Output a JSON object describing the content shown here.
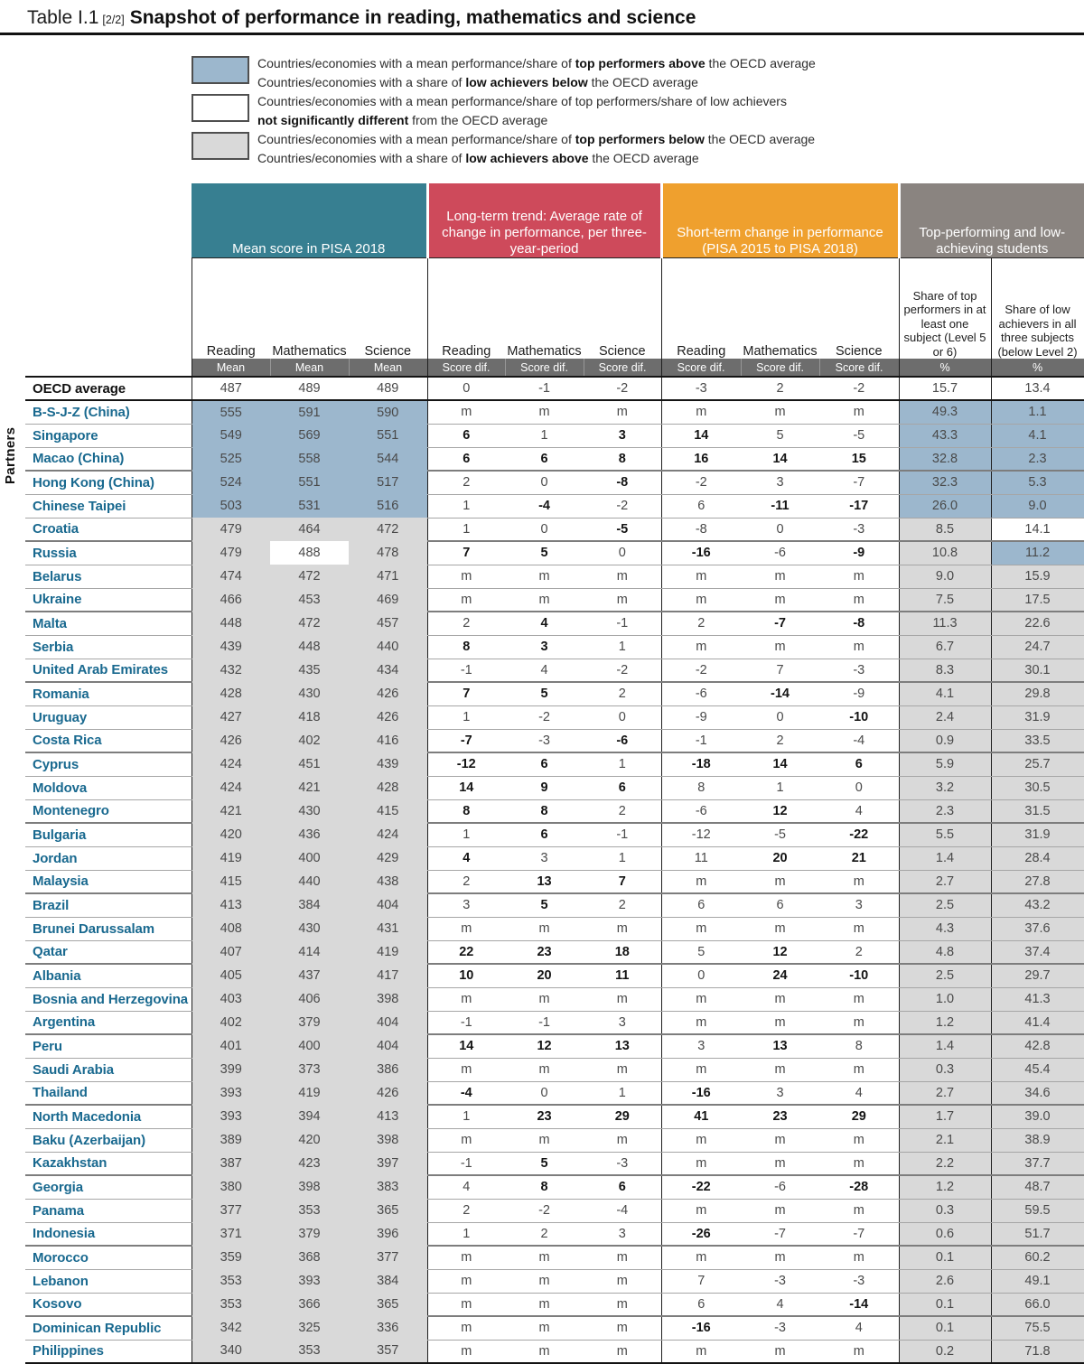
{
  "title": {
    "prefix": "Table I.1",
    "part": "[2/2]",
    "main": "Snapshot of performance in reading, mathematics and science"
  },
  "colors": {
    "header_teal": "#377f91",
    "header_red": "#ce4a5b",
    "header_orange": "#efa02e",
    "header_gray": "#8a8480",
    "stat_band": "#6d6d6d",
    "cell_blue": "#9cb7cd",
    "cell_gray": "#d9d9d9",
    "country_name": "#19698f",
    "white": "#ffffff"
  },
  "legend": [
    {
      "box": "cell_blue",
      "lines": [
        [
          {
            "t": "Countries/economies with a mean performance/share of ",
            "b": false
          },
          {
            "t": "top performers above",
            "b": true
          },
          {
            "t": " the OECD average",
            "b": false
          }
        ],
        [
          {
            "t": "Countries/economies with a share of ",
            "b": false
          },
          {
            "t": "low achievers below",
            "b": true
          },
          {
            "t": " the OECD average",
            "b": false
          }
        ]
      ]
    },
    {
      "box": "white",
      "lines": [
        [
          {
            "t": "Countries/economies with a mean performance/share of top performers/share of low achievers",
            "b": false
          }
        ],
        [
          {
            "t": "not significantly different",
            "b": true
          },
          {
            "t": " from the OECD average",
            "b": false
          }
        ]
      ]
    },
    {
      "box": "cell_gray",
      "lines": [
        [
          {
            "t": "Countries/economies with a mean performance/share of ",
            "b": false
          },
          {
            "t": "top performers below",
            "b": true
          },
          {
            "t": " the OECD average",
            "b": false
          }
        ],
        [
          {
            "t": "Countries/economies with a share of ",
            "b": false
          },
          {
            "t": "low achievers above",
            "b": true
          },
          {
            "t": " the OECD average",
            "b": false
          }
        ]
      ]
    }
  ],
  "side_label": "Partners",
  "groups": [
    {
      "label": "Mean score in PISA 2018",
      "color": "header_teal"
    },
    {
      "label": "Long-term trend: Average rate of change in performance, per three-year-period",
      "color": "header_red"
    },
    {
      "label": "Short-term change in performance (PISA 2015 to PISA 2018)",
      "color": "header_orange"
    },
    {
      "label": "Top-performing and low-achieving students",
      "color": "header_gray"
    }
  ],
  "columns": {
    "subjects": [
      "Reading",
      "Mathematics",
      "Science"
    ],
    "stat_mean": "Mean",
    "stat_dif": "Score dif.",
    "stat_pct": "%",
    "share_top": "Share of top performers in at least one subject (Level 5 or 6)",
    "share_low": "Share of low achievers in all three subjects (below Level 2)"
  },
  "bold_marker_note": "values prefixed with * are shown in bold (statistically significant)",
  "shade_codes": {
    "b": "blue = above OECD average",
    "w": "white = not significantly different",
    "g": "gray = below OECD average"
  },
  "rows": [
    {
      "n": "OECD average",
      "ms": "www",
      "m": [
        "487",
        "489",
        "489"
      ],
      "lt": [
        "0",
        "-1",
        "-2"
      ],
      "st": [
        "-3",
        "2",
        "-2"
      ],
      "tp": "15.7",
      "lw": "13.4",
      "ss": "ww"
    },
    {
      "n": "B-S-J-Z (China)",
      "ms": "bbb",
      "m": [
        "555",
        "591",
        "590"
      ],
      "lt": [
        "m",
        "m",
        "m"
      ],
      "st": [
        "m",
        "m",
        "m"
      ],
      "tp": "49.3",
      "lw": "1.1",
      "ss": "bb"
    },
    {
      "n": "Singapore",
      "ms": "bbb",
      "m": [
        "549",
        "569",
        "551"
      ],
      "lt": [
        "*6",
        "1",
        "*3"
      ],
      "st": [
        "*14",
        "5",
        "-5"
      ],
      "tp": "43.3",
      "lw": "4.1",
      "ss": "bb"
    },
    {
      "n": "Macao (China)",
      "ms": "bbb",
      "m": [
        "525",
        "558",
        "544"
      ],
      "lt": [
        "*6",
        "*6",
        "*8"
      ],
      "st": [
        "*16",
        "*14",
        "*15"
      ],
      "tp": "32.8",
      "lw": "2.3",
      "ss": "bb"
    },
    {
      "n": "Hong Kong (China)",
      "ms": "bbb",
      "m": [
        "524",
        "551",
        "517"
      ],
      "lt": [
        "2",
        "0",
        "*-8"
      ],
      "st": [
        "-2",
        "3",
        "-7"
      ],
      "tp": "32.3",
      "lw": "5.3",
      "ss": "bb"
    },
    {
      "n": "Chinese Taipei",
      "ms": "bbb",
      "m": [
        "503",
        "531",
        "516"
      ],
      "lt": [
        "1",
        "*-4",
        "-2"
      ],
      "st": [
        "6",
        "*-11",
        "*-17"
      ],
      "tp": "26.0",
      "lw": "9.0",
      "ss": "bb"
    },
    {
      "n": "Croatia",
      "ms": "ggg",
      "m": [
        "479",
        "464",
        "472"
      ],
      "lt": [
        "1",
        "0",
        "*-5"
      ],
      "st": [
        "-8",
        "0",
        "-3"
      ],
      "tp": "8.5",
      "lw": "14.1",
      "ss": "gw"
    },
    {
      "n": "Russia",
      "ms": "gwg",
      "m": [
        "479",
        "488",
        "478"
      ],
      "lt": [
        "*7",
        "*5",
        "0"
      ],
      "st": [
        "*-16",
        "-6",
        "*-9"
      ],
      "tp": "10.8",
      "lw": "11.2",
      "ss": "gb"
    },
    {
      "n": "Belarus",
      "ms": "ggg",
      "m": [
        "474",
        "472",
        "471"
      ],
      "lt": [
        "m",
        "m",
        "m"
      ],
      "st": [
        "m",
        "m",
        "m"
      ],
      "tp": "9.0",
      "lw": "15.9",
      "ss": "gg"
    },
    {
      "n": "Ukraine",
      "ms": "ggg",
      "m": [
        "466",
        "453",
        "469"
      ],
      "lt": [
        "m",
        "m",
        "m"
      ],
      "st": [
        "m",
        "m",
        "m"
      ],
      "tp": "7.5",
      "lw": "17.5",
      "ss": "gg"
    },
    {
      "n": "Malta",
      "ms": "ggg",
      "m": [
        "448",
        "472",
        "457"
      ],
      "lt": [
        "2",
        "*4",
        "-1"
      ],
      "st": [
        "2",
        "*-7",
        "*-8"
      ],
      "tp": "11.3",
      "lw": "22.6",
      "ss": "gg"
    },
    {
      "n": "Serbia",
      "ms": "ggg",
      "m": [
        "439",
        "448",
        "440"
      ],
      "lt": [
        "*8",
        "*3",
        "1"
      ],
      "st": [
        "m",
        "m",
        "m"
      ],
      "tp": "6.7",
      "lw": "24.7",
      "ss": "gg"
    },
    {
      "n": "United Arab Emirates",
      "ms": "ggg",
      "m": [
        "432",
        "435",
        "434"
      ],
      "lt": [
        "-1",
        "4",
        "-2"
      ],
      "st": [
        "-2",
        "7",
        "-3"
      ],
      "tp": "8.3",
      "lw": "30.1",
      "ss": "gg"
    },
    {
      "n": "Romania",
      "ms": "ggg",
      "m": [
        "428",
        "430",
        "426"
      ],
      "lt": [
        "*7",
        "*5",
        "2"
      ],
      "st": [
        "-6",
        "*-14",
        "-9"
      ],
      "tp": "4.1",
      "lw": "29.8",
      "ss": "gg"
    },
    {
      "n": "Uruguay",
      "ms": "ggg",
      "m": [
        "427",
        "418",
        "426"
      ],
      "lt": [
        "1",
        "-2",
        "0"
      ],
      "st": [
        "-9",
        "0",
        "*-10"
      ],
      "tp": "2.4",
      "lw": "31.9",
      "ss": "gg"
    },
    {
      "n": "Costa Rica",
      "ms": "ggg",
      "m": [
        "426",
        "402",
        "416"
      ],
      "lt": [
        "*-7",
        "-3",
        "*-6"
      ],
      "st": [
        "-1",
        "2",
        "-4"
      ],
      "tp": "0.9",
      "lw": "33.5",
      "ss": "gg"
    },
    {
      "n": "Cyprus",
      "ms": "ggg",
      "m": [
        "424",
        "451",
        "439"
      ],
      "lt": [
        "*-12",
        "*6",
        "1"
      ],
      "st": [
        "*-18",
        "*14",
        "*6"
      ],
      "tp": "5.9",
      "lw": "25.7",
      "ss": "gg"
    },
    {
      "n": "Moldova",
      "ms": "ggg",
      "m": [
        "424",
        "421",
        "428"
      ],
      "lt": [
        "*14",
        "*9",
        "*6"
      ],
      "st": [
        "8",
        "1",
        "0"
      ],
      "tp": "3.2",
      "lw": "30.5",
      "ss": "gg"
    },
    {
      "n": "Montenegro",
      "ms": "ggg",
      "m": [
        "421",
        "430",
        "415"
      ],
      "lt": [
        "*8",
        "*8",
        "2"
      ],
      "st": [
        "-6",
        "*12",
        "4"
      ],
      "tp": "2.3",
      "lw": "31.5",
      "ss": "gg"
    },
    {
      "n": "Bulgaria",
      "ms": "ggg",
      "m": [
        "420",
        "436",
        "424"
      ],
      "lt": [
        "1",
        "*6",
        "-1"
      ],
      "st": [
        "-12",
        "-5",
        "*-22"
      ],
      "tp": "5.5",
      "lw": "31.9",
      "ss": "gg"
    },
    {
      "n": "Jordan",
      "ms": "ggg",
      "m": [
        "419",
        "400",
        "429"
      ],
      "lt": [
        "*4",
        "3",
        "1"
      ],
      "st": [
        "11",
        "*20",
        "*21"
      ],
      "tp": "1.4",
      "lw": "28.4",
      "ss": "gg"
    },
    {
      "n": "Malaysia",
      "ms": "ggg",
      "m": [
        "415",
        "440",
        "438"
      ],
      "lt": [
        "2",
        "*13",
        "*7"
      ],
      "st": [
        "m",
        "m",
        "m"
      ],
      "tp": "2.7",
      "lw": "27.8",
      "ss": "gg"
    },
    {
      "n": "Brazil",
      "ms": "ggg",
      "m": [
        "413",
        "384",
        "404"
      ],
      "lt": [
        "3",
        "*5",
        "2"
      ],
      "st": [
        "6",
        "6",
        "3"
      ],
      "tp": "2.5",
      "lw": "43.2",
      "ss": "gg"
    },
    {
      "n": "Brunei Darussalam",
      "ms": "ggg",
      "m": [
        "408",
        "430",
        "431"
      ],
      "lt": [
        "m",
        "m",
        "m"
      ],
      "st": [
        "m",
        "m",
        "m"
      ],
      "tp": "4.3",
      "lw": "37.6",
      "ss": "gg"
    },
    {
      "n": "Qatar",
      "ms": "ggg",
      "m": [
        "407",
        "414",
        "419"
      ],
      "lt": [
        "*22",
        "*23",
        "*18"
      ],
      "st": [
        "5",
        "*12",
        "2"
      ],
      "tp": "4.8",
      "lw": "37.4",
      "ss": "gg"
    },
    {
      "n": "Albania",
      "ms": "ggg",
      "m": [
        "405",
        "437",
        "417"
      ],
      "lt": [
        "*10",
        "*20",
        "*11"
      ],
      "st": [
        "0",
        "*24",
        "*-10"
      ],
      "tp": "2.5",
      "lw": "29.7",
      "ss": "gg"
    },
    {
      "n": "Bosnia and Herzegovina",
      "ms": "ggg",
      "m": [
        "403",
        "406",
        "398"
      ],
      "lt": [
        "m",
        "m",
        "m"
      ],
      "st": [
        "m",
        "m",
        "m"
      ],
      "tp": "1.0",
      "lw": "41.3",
      "ss": "gg"
    },
    {
      "n": "Argentina",
      "ms": "ggg",
      "m": [
        "402",
        "379",
        "404"
      ],
      "lt": [
        "-1",
        "-1",
        "3"
      ],
      "st": [
        "m",
        "m",
        "m"
      ],
      "tp": "1.2",
      "lw": "41.4",
      "ss": "gg"
    },
    {
      "n": "Peru",
      "ms": "ggg",
      "m": [
        "401",
        "400",
        "404"
      ],
      "lt": [
        "*14",
        "*12",
        "*13"
      ],
      "st": [
        "3",
        "*13",
        "8"
      ],
      "tp": "1.4",
      "lw": "42.8",
      "ss": "gg"
    },
    {
      "n": "Saudi Arabia",
      "ms": "ggg",
      "m": [
        "399",
        "373",
        "386"
      ],
      "lt": [
        "m",
        "m",
        "m"
      ],
      "st": [
        "m",
        "m",
        "m"
      ],
      "tp": "0.3",
      "lw": "45.4",
      "ss": "gg"
    },
    {
      "n": "Thailand",
      "ms": "ggg",
      "m": [
        "393",
        "419",
        "426"
      ],
      "lt": [
        "*-4",
        "0",
        "1"
      ],
      "st": [
        "*-16",
        "3",
        "4"
      ],
      "tp": "2.7",
      "lw": "34.6",
      "ss": "gg"
    },
    {
      "n": "North Macedonia",
      "ms": "ggg",
      "m": [
        "393",
        "394",
        "413"
      ],
      "lt": [
        "1",
        "*23",
        "*29"
      ],
      "st": [
        "*41",
        "*23",
        "*29"
      ],
      "tp": "1.7",
      "lw": "39.0",
      "ss": "gg"
    },
    {
      "n": "Baku (Azerbaijan)",
      "ms": "ggg",
      "m": [
        "389",
        "420",
        "398"
      ],
      "lt": [
        "m",
        "m",
        "m"
      ],
      "st": [
        "m",
        "m",
        "m"
      ],
      "tp": "2.1",
      "lw": "38.9",
      "ss": "gg"
    },
    {
      "n": "Kazakhstan",
      "ms": "ggg",
      "m": [
        "387",
        "423",
        "397"
      ],
      "lt": [
        "-1",
        "*5",
        "-3"
      ],
      "st": [
        "m",
        "m",
        "m"
      ],
      "tp": "2.2",
      "lw": "37.7",
      "ss": "gg"
    },
    {
      "n": "Georgia",
      "ms": "ggg",
      "m": [
        "380",
        "398",
        "383"
      ],
      "lt": [
        "4",
        "*8",
        "*6"
      ],
      "st": [
        "*-22",
        "-6",
        "*-28"
      ],
      "tp": "1.2",
      "lw": "48.7",
      "ss": "gg"
    },
    {
      "n": "Panama",
      "ms": "ggg",
      "m": [
        "377",
        "353",
        "365"
      ],
      "lt": [
        "2",
        "-2",
        "-4"
      ],
      "st": [
        "m",
        "m",
        "m"
      ],
      "tp": "0.3",
      "lw": "59.5",
      "ss": "gg"
    },
    {
      "n": "Indonesia",
      "ms": "ggg",
      "m": [
        "371",
        "379",
        "396"
      ],
      "lt": [
        "1",
        "2",
        "3"
      ],
      "st": [
        "*-26",
        "-7",
        "-7"
      ],
      "tp": "0.6",
      "lw": "51.7",
      "ss": "gg"
    },
    {
      "n": "Morocco",
      "ms": "ggg",
      "m": [
        "359",
        "368",
        "377"
      ],
      "lt": [
        "m",
        "m",
        "m"
      ],
      "st": [
        "m",
        "m",
        "m"
      ],
      "tp": "0.1",
      "lw": "60.2",
      "ss": "gg"
    },
    {
      "n": "Lebanon",
      "ms": "ggg",
      "m": [
        "353",
        "393",
        "384"
      ],
      "lt": [
        "m",
        "m",
        "m"
      ],
      "st": [
        "7",
        "-3",
        "-3"
      ],
      "tp": "2.6",
      "lw": "49.1",
      "ss": "gg"
    },
    {
      "n": "Kosovo",
      "ms": "ggg",
      "m": [
        "353",
        "366",
        "365"
      ],
      "lt": [
        "m",
        "m",
        "m"
      ],
      "st": [
        "6",
        "4",
        "*-14"
      ],
      "tp": "0.1",
      "lw": "66.0",
      "ss": "gg"
    },
    {
      "n": "Dominican Republic",
      "ms": "ggg",
      "m": [
        "342",
        "325",
        "336"
      ],
      "lt": [
        "m",
        "m",
        "m"
      ],
      "st": [
        "*-16",
        "-3",
        "4"
      ],
      "tp": "0.1",
      "lw": "75.5",
      "ss": "gg"
    },
    {
      "n": "Philippines",
      "ms": "ggg",
      "m": [
        "340",
        "353",
        "357"
      ],
      "lt": [
        "m",
        "m",
        "m"
      ],
      "st": [
        "m",
        "m",
        "m"
      ],
      "tp": "0.2",
      "lw": "71.8",
      "ss": "gg"
    }
  ]
}
